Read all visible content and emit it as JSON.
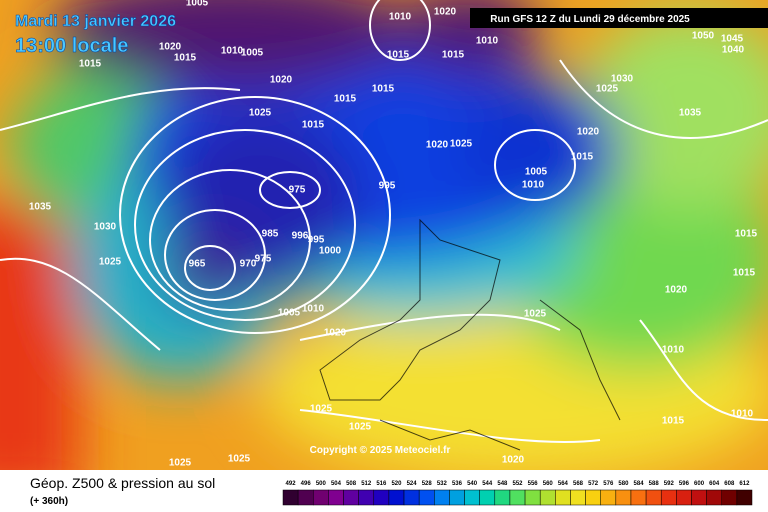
{
  "header": {
    "date": "Mardi 13 janvier 2026",
    "time": "13:00 locale",
    "run": "Run GFS 12 Z du Lundi 29 décembre 2025"
  },
  "isobar_labels": [
    "1005",
    "1010",
    "1020",
    "1020",
    "1015",
    "1015",
    "1010",
    "1005",
    "1015",
    "1015",
    "1010",
    "1050",
    "1045",
    "1040",
    "1030",
    "1025",
    "1035",
    "1020",
    "1015",
    "1015",
    "1025",
    "1015",
    "1020",
    "1025",
    "1020",
    "1015",
    "1005",
    "1010",
    "995",
    "975",
    "1035",
    "1030",
    "1025",
    "985",
    "996",
    "995",
    "1000",
    "975",
    "970",
    "965",
    "1010",
    "1005",
    "1020",
    "1025",
    "1020",
    "1015",
    "1015",
    "1010",
    "1015",
    "1010",
    "1025",
    "1025",
    "1025",
    "1025",
    "1020"
  ],
  "copyright": "Copyright © 2025 Meteociel.fr",
  "footer": {
    "title": "Géop. Z500 & pression au sol",
    "lead": "(+ 360h)"
  },
  "legend": {
    "labels": [
      "492",
      "496",
      "500",
      "504",
      "508",
      "512",
      "516",
      "520",
      "524",
      "528",
      "532",
      "536",
      "540",
      "544",
      "548",
      "552",
      "556",
      "560",
      "564",
      "568",
      "572",
      "576",
      "580",
      "584",
      "588",
      "592",
      "596",
      "600",
      "604",
      "608",
      "612"
    ]
  }
}
